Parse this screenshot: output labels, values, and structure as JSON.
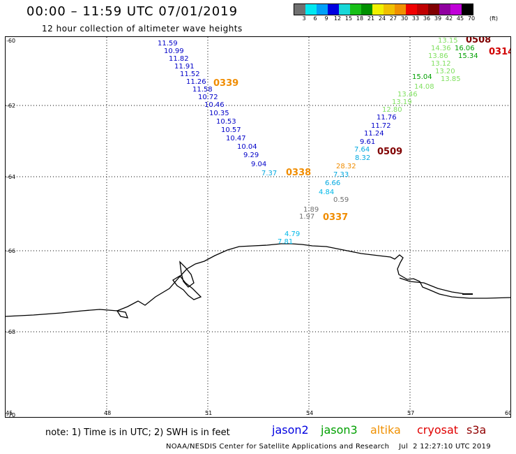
{
  "header": {
    "title": "00:00 – 11:59 UTC 07/01/2019",
    "subtitle": "12 hour collection of altimeter wave heights"
  },
  "legend": {
    "unit_label": "(ft)",
    "colors": [
      "#707070",
      "#00e8f0",
      "#00a0f8",
      "#0000e0",
      "#18d8d8",
      "#18c018",
      "#009000",
      "#f0f000",
      "#f0c000",
      "#f09000",
      "#f00000",
      "#c00000",
      "#800000",
      "#9000a0",
      "#c000d8",
      "#000000"
    ],
    "labels": [
      "3",
      "6",
      "9",
      "12",
      "15",
      "18",
      "21",
      "24",
      "27",
      "30",
      "33",
      "36",
      "39",
      "42",
      "45",
      "70"
    ]
  },
  "map": {
    "lat_ticks": [
      "-60",
      "-62",
      "-64",
      "-66",
      "-68",
      "-70"
    ],
    "lon_ticks": [
      "45",
      "48",
      "51",
      "54",
      "57",
      "60"
    ]
  },
  "tracks": [
    {
      "sat": "jason2",
      "color": "#0000c8",
      "values": [
        "11.59",
        "10.99",
        "11.82",
        "11.91",
        "11.52",
        "11.26",
        "11.58",
        "10.72",
        "10.46",
        "10.35",
        "10.53",
        "10.57",
        "10.47",
        "10.04",
        "9.29",
        "9.04"
      ]
    },
    {
      "sat": "jason2",
      "color": "#00a8e0",
      "values": [
        "7.37"
      ]
    },
    {
      "sat": "altika",
      "color": "#f08c00",
      "values": [
        "0339",
        "0338",
        "0337"
      ]
    },
    {
      "sat": "jason3",
      "color": "#80e060",
      "values": [
        "13.15",
        "14.36",
        "13.86",
        "13.12",
        "13.20",
        "13.85",
        "14.08",
        "13.46",
        "13.19",
        "12.80"
      ]
    },
    {
      "sat": "jason3",
      "color": "#00a000",
      "values": [
        "16.06",
        "15.34",
        "15.04"
      ]
    },
    {
      "sat": "cryosat",
      "color": "#800000",
      "values": [
        "0508",
        "0509"
      ]
    },
    {
      "sat": "s3a",
      "color": "#d00000",
      "values": [
        "0314"
      ]
    },
    {
      "sat": "jason2",
      "color": "#0000c8",
      "values": [
        "11.76",
        "11.72",
        "11.24",
        "9.61"
      ]
    },
    {
      "sat": "jason2",
      "color": "#00a8e0",
      "values": [
        "7.64",
        "8.32",
        "7.33",
        "6.66"
      ]
    },
    {
      "sat": "altika",
      "color": "#f08c00",
      "values": [
        "28.32"
      ]
    },
    {
      "sat": "jason2",
      "color": "#00b8e8",
      "values": [
        "4.84",
        "4.79",
        "7.81"
      ]
    },
    {
      "sat": "gray",
      "color": "#707070",
      "values": [
        "0.59",
        "1.89",
        "1.97"
      ]
    }
  ],
  "footer": {
    "note": "note:  1) Time is in UTC;  2) SWH is in feet",
    "satellites": [
      {
        "name": "jason2",
        "color": "#0000e0"
      },
      {
        "name": "jason3",
        "color": "#00a000"
      },
      {
        "name": "altika",
        "color": "#f09000"
      },
      {
        "name": "cryosat",
        "color": "#e00000"
      },
      {
        "name": "s3a",
        "color": "#900000"
      }
    ],
    "credit": "NOAA/NESDIS Center for Satellite Applications and Research    Jul  2 12:27:10 UTC 2019"
  }
}
